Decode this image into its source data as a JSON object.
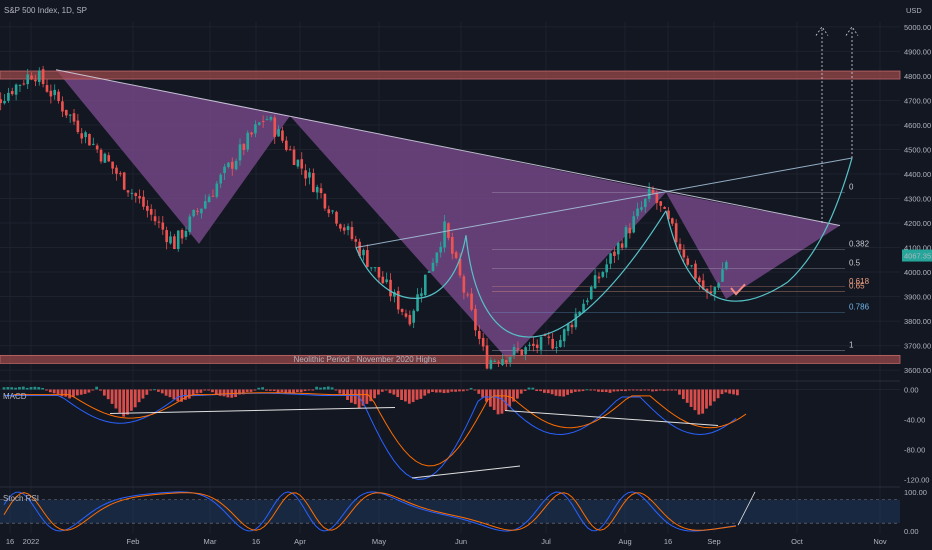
{
  "header": {
    "symbol_title": "S&P 500 Index, 1D, SP",
    "currency": "USD"
  },
  "price_panel": {
    "last_price_tag": "4067.35",
    "zone_label": "Neolithic Period - November 2020 Highs"
  },
  "macd_panel": {
    "label": "MACD"
  },
  "stoch_panel": {
    "label": "Stoch RSI"
  },
  "colors": {
    "background": "#131722",
    "up": "#26a69a",
    "down": "#ef5350",
    "pattern_fill": "#7b4a8e",
    "resistance_zone": "#a14c4c",
    "cup_curve": "#56c2c8",
    "fib_line": "#f0a060",
    "trendline": "#d8d8e8",
    "price_tag": "#26a69a"
  },
  "chart_data": [
    {
      "type": "candlestick",
      "title": "S&P 500 Index, 1D, SP",
      "x_axis_labels": [
        "16",
        "2022",
        "Feb",
        "Mar",
        "16",
        "Apr",
        "May",
        "Jun",
        "Jul",
        "Aug",
        "16",
        "Sep",
        "Oct",
        "Nov"
      ],
      "y_axis_labels": [
        "5000.00",
        "4900.00",
        "4800.00",
        "4700.00",
        "4600.00",
        "4500.00",
        "4400.00",
        "4300.00",
        "4200.00",
        "4100.00",
        "4000.00",
        "3900.00",
        "3800.00",
        "3700.00",
        "3600.00"
      ],
      "ylim": [
        3580,
        5020
      ],
      "key_points": [
        {
          "date": "Dec 16",
          "price": 4650
        },
        {
          "date": "Jan 4",
          "price": 4818
        },
        {
          "date": "Feb 24",
          "price": 4115
        },
        {
          "date": "Mar 29",
          "price": 4637
        },
        {
          "date": "May 20",
          "price": 3810
        },
        {
          "date": "Jun 2",
          "price": 4175
        },
        {
          "date": "Jun 17",
          "price": 3637
        },
        {
          "date": "Jul 14",
          "price": 3725
        },
        {
          "date": "Aug 16",
          "price": 4325
        },
        {
          "date": "Sep 6",
          "price": 3885
        },
        {
          "date": "Sep 13",
          "price": 4067.35
        }
      ],
      "last_price": 4067.35,
      "zones": [
        {
          "price_from": 4790,
          "price_to": 4820
        },
        {
          "price_from": 3630,
          "price_to": 3660,
          "label": "Neolithic Period - November 2020 Highs"
        }
      ],
      "fibonacci_levels": [
        {
          "label": "0",
          "price": 4325
        },
        {
          "label": "0.382",
          "price": 4092
        },
        {
          "label": "0.5",
          "price": 4015
        },
        {
          "label": "0.618",
          "price": 3940
        },
        {
          "label": "0.65",
          "price": 3920
        },
        {
          "label": "0.786",
          "price": 3835
        },
        {
          "label": "1",
          "price": 3680
        }
      ],
      "grid": true
    },
    {
      "type": "histogram",
      "title": "MACD",
      "y_axis_labels": [
        "0.00",
        "-40.00",
        "-80.00",
        "-120.00"
      ],
      "ylim": [
        -130,
        10
      ]
    },
    {
      "type": "line",
      "title": "Stoch RSI",
      "y_axis_labels": [
        "100.00",
        "0.00"
      ],
      "ylim": [
        -5,
        110
      ],
      "bands": [
        20,
        80
      ]
    }
  ]
}
